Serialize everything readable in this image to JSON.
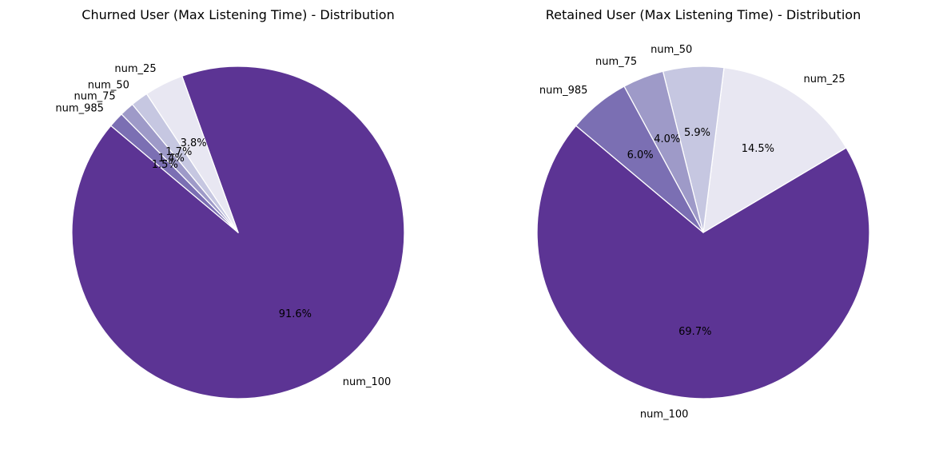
{
  "chart_data": [
    {
      "type": "pie",
      "title": "Churned User (Max Listening Time) - Distribution",
      "categories": [
        "num_100",
        "num_25",
        "num_50",
        "num_75",
        "num_985"
      ],
      "values": [
        91.6,
        3.8,
        1.7,
        1.4,
        1.5
      ],
      "pct_labels": [
        "91.6%",
        "3.8%",
        "1.7%",
        "1.4%",
        "1.5%"
      ],
      "colors": [
        "#5c3494",
        "#e8e7f2",
        "#c6c7e1",
        "#9e9ac8",
        "#7b6fb3"
      ],
      "start_angle_deg": 140,
      "direction": "counterclockwise",
      "wedge_edgecolor": "#ffffff"
    },
    {
      "type": "pie",
      "title": "Retained User (Max Listening Time) - Distribution",
      "categories": [
        "num_100",
        "num_25",
        "num_50",
        "num_75",
        "num_985"
      ],
      "values": [
        69.7,
        14.5,
        5.9,
        4.0,
        6.0
      ],
      "pct_labels": [
        "69.7%",
        "14.5%",
        "5.9%",
        "4.0%",
        "6.0%"
      ],
      "colors": [
        "#5c3494",
        "#e8e7f2",
        "#c6c7e1",
        "#9e9ac8",
        "#7b6fb3"
      ],
      "start_angle_deg": 140,
      "direction": "counterclockwise",
      "wedge_edgecolor": "#ffffff"
    }
  ]
}
